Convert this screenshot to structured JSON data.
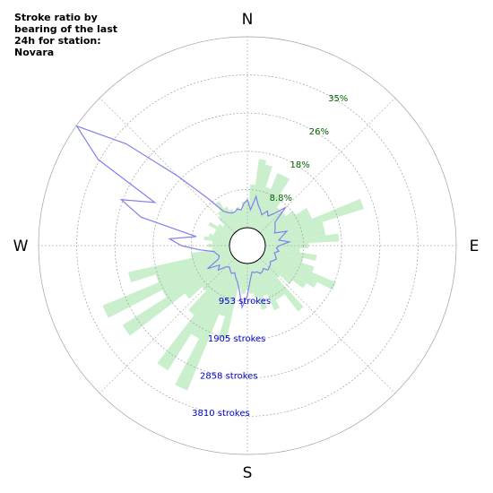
{
  "title": "Stroke ratio by bearing of the last 24h for station: Novara",
  "colors": {
    "ratio_bars": "#c9efcc",
    "stroke_line": "#8080ee",
    "ring": "#a0a0a0",
    "grid": "#b0b0b0",
    "pct_label": "#006400",
    "stroke_label": "#0000cc"
  },
  "chart_data": {
    "type": "polar",
    "directions": [
      "N",
      "E",
      "S",
      "W"
    ],
    "ratio_rings": [
      "8.8%",
      "18%",
      "26%",
      "35%"
    ],
    "ratio_max": 44,
    "stroke_rings": [
      "953 strokes",
      "1905 strokes",
      "2858 strokes",
      "3810 strokes"
    ],
    "stroke_max": 4762,
    "bearing_step": 5,
    "series": [
      {
        "name": "",
        "kind": "ratio_bars",
        "bearings": [
          0,
          5,
          10,
          15,
          20,
          25,
          30,
          35,
          40,
          45,
          50,
          55,
          60,
          65,
          70,
          75,
          80,
          85,
          90,
          95,
          100,
          105,
          110,
          115,
          120,
          125,
          130,
          135,
          140,
          145,
          150,
          155,
          160,
          165,
          170,
          175,
          180,
          185,
          190,
          195,
          200,
          205,
          210,
          215,
          220,
          225,
          230,
          235,
          240,
          245,
          250,
          255,
          260,
          265,
          270,
          275,
          280,
          285,
          290,
          295,
          300,
          305,
          310,
          315,
          320,
          325,
          330,
          335,
          340,
          345,
          350,
          355
        ],
        "values": [
          6,
          10,
          16,
          15,
          10,
          14,
          14,
          9,
          7,
          7,
          7,
          9,
          12,
          12,
          24,
          14,
          14,
          17,
          10,
          8,
          12,
          9,
          12,
          18,
          14,
          12,
          9,
          6,
          15,
          10,
          10,
          12,
          8,
          11,
          8,
          7,
          6,
          7,
          6,
          18,
          13,
          32,
          20,
          30,
          16,
          10,
          14,
          30,
          18,
          32,
          18,
          24,
          9,
          4,
          5,
          4,
          6,
          5,
          4,
          4,
          6,
          4,
          3,
          5,
          6,
          8,
          6,
          5,
          4,
          5,
          4,
          6
        ]
      },
      {
        "name": "",
        "kind": "stroke_line",
        "bearings": [
          0,
          5,
          10,
          15,
          20,
          25,
          30,
          35,
          40,
          45,
          50,
          55,
          60,
          65,
          70,
          75,
          80,
          85,
          90,
          95,
          100,
          105,
          110,
          115,
          120,
          125,
          130,
          135,
          140,
          145,
          150,
          155,
          160,
          165,
          170,
          175,
          180,
          185,
          190,
          195,
          200,
          205,
          210,
          215,
          220,
          225,
          230,
          235,
          240,
          245,
          250,
          255,
          260,
          265,
          270,
          275,
          280,
          285,
          290,
          295,
          300,
          305,
          310,
          315,
          320,
          325,
          330,
          335,
          340,
          345,
          350,
          355
        ],
        "values": [
          700,
          450,
          800,
          600,
          500,
          400,
          550,
          450,
          600,
          900,
          450,
          400,
          350,
          300,
          600,
          450,
          350,
          600,
          350,
          280,
          350,
          250,
          300,
          350,
          300,
          250,
          300,
          320,
          350,
          250,
          300,
          320,
          250,
          250,
          220,
          400,
          800,
          1100,
          700,
          500,
          400,
          300,
          350,
          300,
          250,
          300,
          500,
          400,
          700,
          350,
          300,
          350,
          400,
          750,
          1200,
          1500,
          850,
          2300,
          2900,
          2100,
          3850,
          4750,
          3500,
          2000,
          1100,
          600,
          500,
          450,
          450,
          500,
          450,
          600
        ]
      }
    ]
  }
}
